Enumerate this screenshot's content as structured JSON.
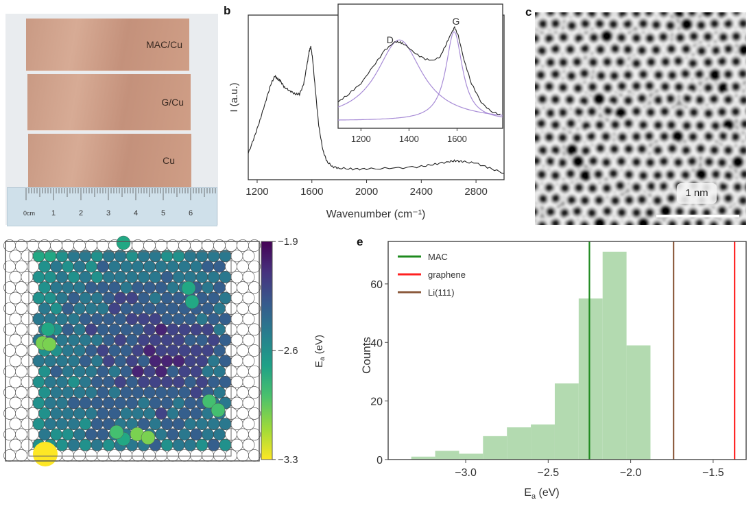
{
  "figure": {
    "panel_labels": {
      "a": "",
      "b": "b",
      "c": "c",
      "d": "",
      "e": "e"
    }
  },
  "panel_a": {
    "samples": [
      "MAC/Cu",
      "G/Cu",
      "Cu"
    ],
    "ruler": {
      "unit_label": "0cm",
      "ticks": [
        "1",
        "2",
        "3",
        "4",
        "5",
        "6"
      ]
    },
    "strip_color": "#cc9c86"
  },
  "panel_c": {
    "scale_bar_label": "1 nm"
  },
  "chart_data": [
    {
      "id": "raman",
      "type": "line",
      "title": "",
      "xlabel": "Wavenumber (cm⁻¹)",
      "ylabel": "I (a.u.)",
      "xlim": [
        1135,
        3005
      ],
      "ylim": [
        0,
        1
      ],
      "xticks": [
        1200,
        1600,
        2000,
        2400,
        2800
      ],
      "x": [
        1135,
        1180,
        1220,
        1260,
        1300,
        1330,
        1350,
        1370,
        1400,
        1440,
        1480,
        1510,
        1540,
        1565,
        1580,
        1592,
        1605,
        1625,
        1650,
        1680,
        1710,
        1750,
        1800,
        1900,
        2000,
        2200,
        2400,
        2500,
        2600,
        2650,
        2700,
        2800,
        2900,
        3005
      ],
      "y": [
        0.16,
        0.26,
        0.36,
        0.47,
        0.58,
        0.63,
        0.61,
        0.6,
        0.56,
        0.54,
        0.52,
        0.52,
        0.58,
        0.7,
        0.78,
        0.81,
        0.74,
        0.55,
        0.33,
        0.18,
        0.11,
        0.08,
        0.07,
        0.065,
        0.065,
        0.07,
        0.08,
        0.095,
        0.11,
        0.115,
        0.11,
        0.1,
        0.07,
        0.04
      ],
      "color": "#222222",
      "inset": {
        "xlim": [
          1105,
          1790
        ],
        "xticks": [
          1200,
          1400,
          1600
        ],
        "annotations": [
          {
            "text": "D",
            "x": 1350
          },
          {
            "text": "G",
            "x": 1590
          }
        ],
        "measured": {
          "x": [
            1105,
            1150,
            1200,
            1250,
            1300,
            1340,
            1360,
            1380,
            1420,
            1460,
            1500,
            1530,
            1555,
            1575,
            1590,
            1605,
            1630,
            1660,
            1700,
            1740,
            1790
          ],
          "y": [
            0.22,
            0.3,
            0.4,
            0.56,
            0.72,
            0.8,
            0.8,
            0.78,
            0.7,
            0.64,
            0.62,
            0.66,
            0.78,
            0.88,
            0.94,
            0.86,
            0.62,
            0.4,
            0.22,
            0.13,
            0.09
          ]
        },
        "fits": [
          {
            "name": "D",
            "center": 1360,
            "hwhm": 115,
            "amplitude": 0.78,
            "color": "#a78bd6"
          },
          {
            "name": "G",
            "center": 1588,
            "hwhm": 42,
            "amplitude": 0.86,
            "color": "#a78bd6"
          }
        ],
        "fit_baseline": 0.04
      }
    },
    {
      "id": "adsorption-map",
      "type": "heatmap",
      "title": "",
      "colorbar": {
        "label": "E_a (eV)",
        "min": -3.3,
        "max": -1.9,
        "ticks": [
          -1.9,
          -2.6,
          -3.3
        ],
        "colormap": "viridis"
      }
    },
    {
      "id": "histogram",
      "type": "bar",
      "title": "",
      "xlabel": "E_a (eV)",
      "ylabel": "Counts",
      "xlim": [
        -3.47,
        -1.3
      ],
      "ylim": [
        0,
        74.5
      ],
      "xticks": [
        -3.0,
        -2.5,
        -2.0,
        -1.5
      ],
      "yticks": [
        0,
        20,
        40,
        60
      ],
      "bin_edges": [
        -3.33,
        -3.185,
        -3.04,
        -2.895,
        -2.75,
        -2.605,
        -2.46,
        -2.315,
        -2.17,
        -2.025,
        -1.88
      ],
      "values": [
        1,
        3,
        2,
        8,
        11,
        12,
        26,
        55,
        71,
        39
      ],
      "bar_color": "#b3dab0",
      "reference_lines": [
        {
          "name": "MAC",
          "x": -2.25,
          "color": "#1e8a1e"
        },
        {
          "name": "graphene",
          "x": -1.37,
          "color": "#ff2020"
        },
        {
          "name": "Li(111)",
          "x": -1.74,
          "color": "#8b5a3c"
        }
      ],
      "legend_position": "top-left"
    }
  ]
}
